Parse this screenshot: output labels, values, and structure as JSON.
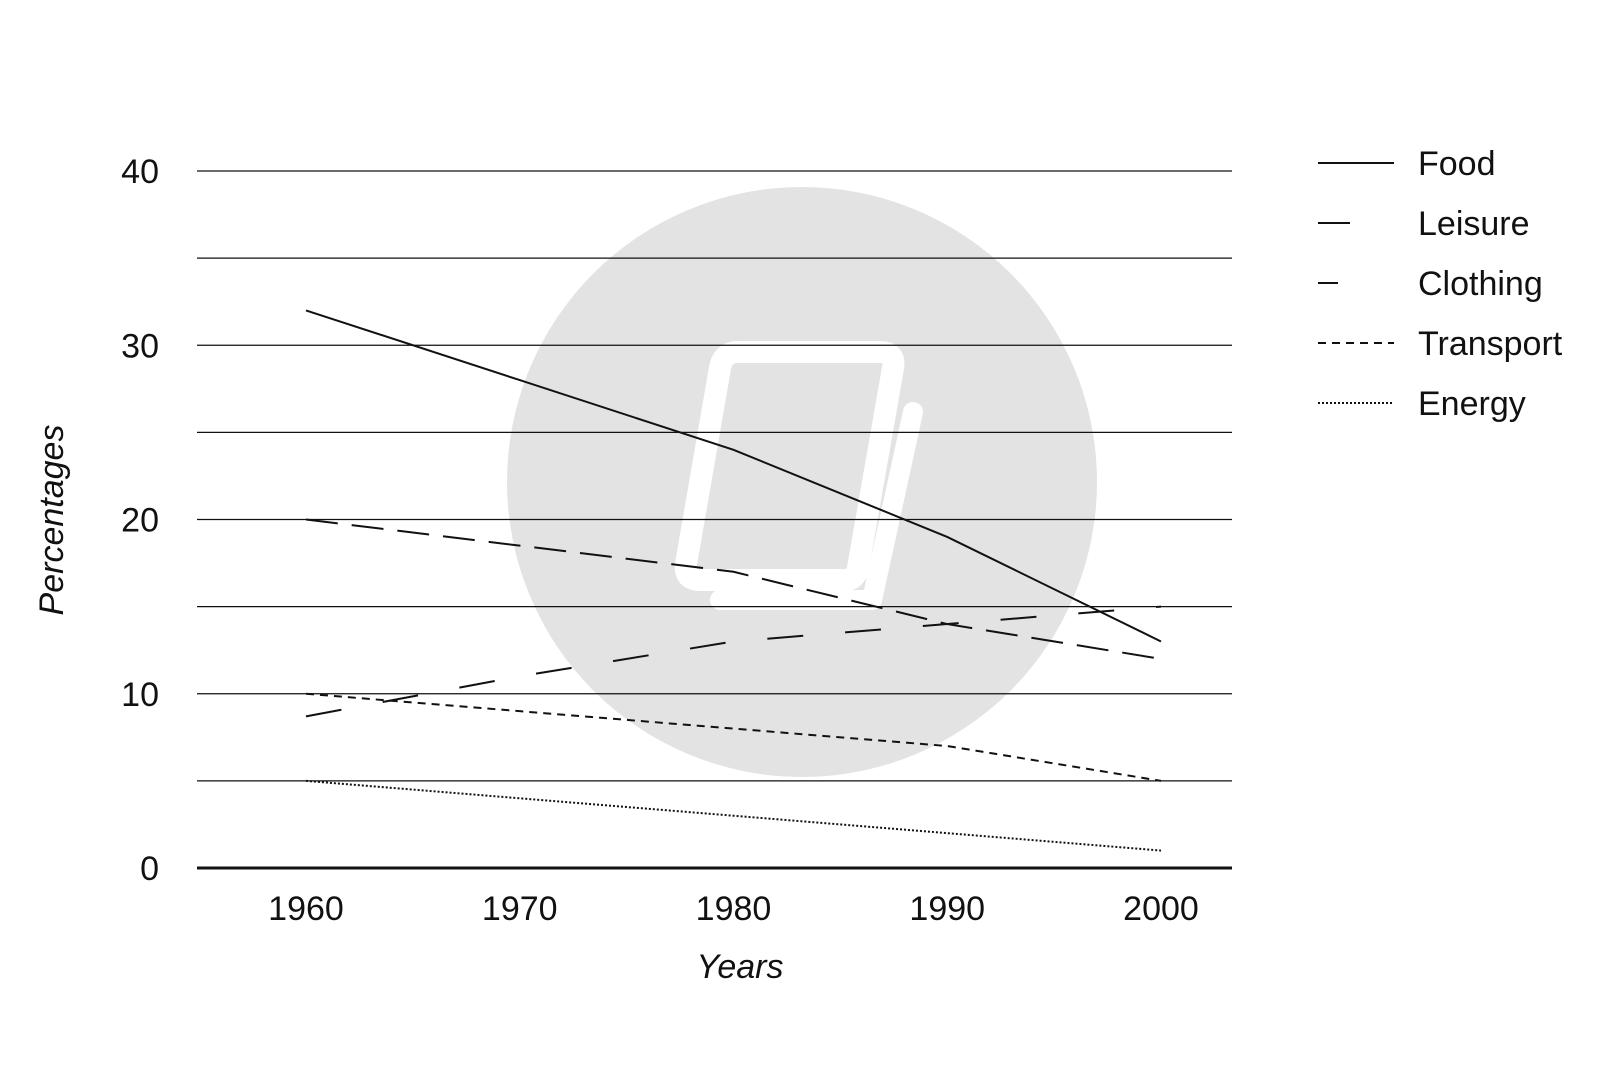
{
  "chart_data": {
    "type": "line",
    "title": "",
    "xlabel": "Years",
    "ylabel": "Percentages",
    "x": [
      1960,
      1970,
      1980,
      1990,
      2000
    ],
    "x_tick_labels": [
      "1960",
      "1970",
      "1980",
      "1990",
      "2000"
    ],
    "ylim": [
      0,
      40
    ],
    "y_tick_labels": [
      "0",
      "10",
      "20",
      "30",
      "40"
    ],
    "y_ticks": [
      0,
      10,
      20,
      30,
      40
    ],
    "gridlines": [
      5,
      10,
      15,
      20,
      25,
      30,
      35,
      40
    ],
    "grid": true,
    "legend_position": "right-top",
    "series": [
      {
        "name": "Food",
        "dash": "solid",
        "points": [
          [
            1960,
            32
          ],
          [
            1970,
            28
          ],
          [
            1980,
            24
          ],
          [
            1990,
            19
          ],
          [
            2000,
            13
          ]
        ]
      },
      {
        "name": "Leisure",
        "dash": "long-short",
        "points": [
          [
            1960,
            20
          ],
          [
            1970,
            18.5
          ],
          [
            1980,
            17
          ],
          [
            1990,
            14
          ],
          [
            2000,
            12
          ]
        ]
      },
      {
        "name": "Clothing",
        "dash": "long-gap",
        "points": [
          [
            1960,
            8.7
          ],
          [
            1970,
            11
          ],
          [
            1980,
            13
          ],
          [
            1990,
            14
          ],
          [
            2000,
            15
          ]
        ]
      },
      {
        "name": "Transport",
        "dash": "short",
        "points": [
          [
            1960,
            10
          ],
          [
            1970,
            9
          ],
          [
            1980,
            8
          ],
          [
            1990,
            7
          ],
          [
            2000,
            5
          ]
        ]
      },
      {
        "name": "Energy",
        "dash": "dotted",
        "points": [
          [
            1960,
            5
          ],
          [
            1970,
            4
          ],
          [
            1980,
            3
          ],
          [
            1990,
            2
          ],
          [
            2000,
            1
          ]
        ]
      }
    ]
  },
  "colors": {
    "line": "#111111",
    "grid": "#111111",
    "watermark": "#e3e3e3"
  },
  "watermark": {
    "icon": "book-icon"
  }
}
